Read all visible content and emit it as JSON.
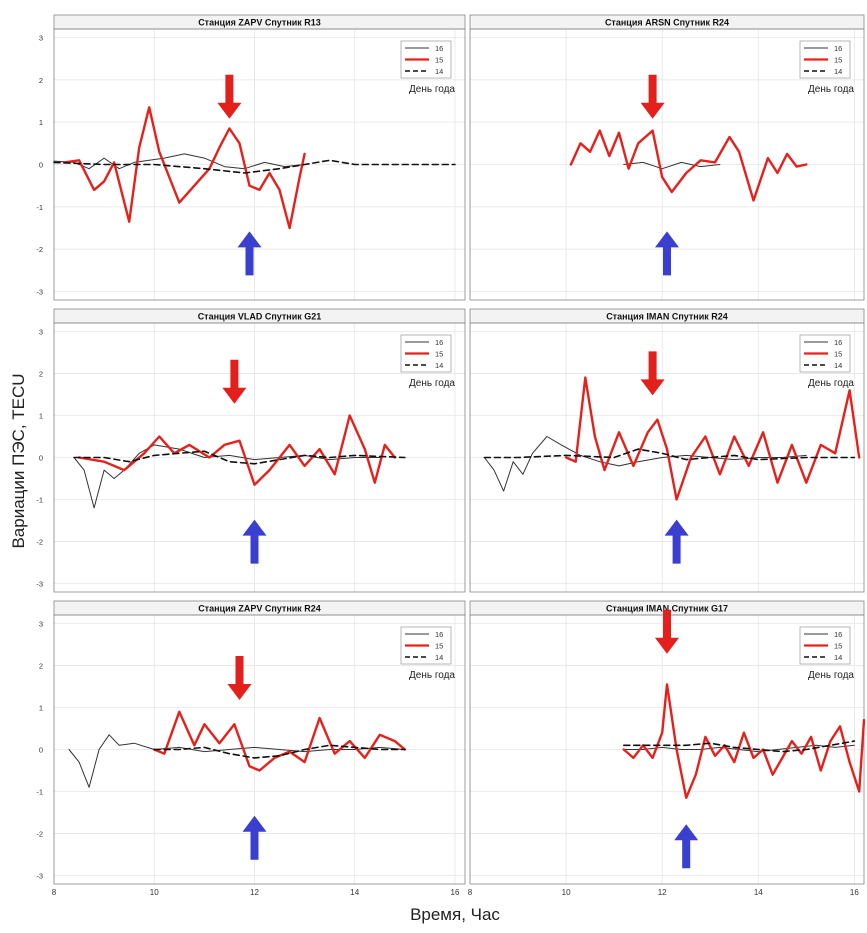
{
  "figure": {
    "ylabel": "Вариации ПЭС, TECU",
    "xlabel": "Время, Час",
    "legend_title": "День года",
    "colors": {
      "d16": "#333333",
      "d15": "#e8201b",
      "d14": "#111111",
      "down_arrow": "#e3201b",
      "up_arrow": "#3a3fd0",
      "grid": "#e6e6e6"
    }
  },
  "chart_data": [
    {
      "type": "line",
      "title": "Станция ZAPV Спутник R13",
      "xlim": [
        8,
        16.2
      ],
      "ylim": [
        -3.2,
        3.2
      ],
      "xticks": [],
      "yticks": [
        -3,
        -2,
        -1,
        0,
        1,
        2,
        3
      ],
      "grid": true,
      "legend": "top-right",
      "arrows": [
        {
          "dir": "down",
          "x": 11.5,
          "y": 1.6
        },
        {
          "dir": "up",
          "x": 11.9,
          "y": -2.1
        }
      ],
      "series": [
        {
          "name": "16",
          "style": "solid",
          "x": [
            8,
            8.4,
            8.7,
            9.0,
            9.3,
            9.6,
            9.9,
            10.2,
            10.6,
            11.0,
            11.4,
            11.8,
            12.2,
            12.6,
            13.0
          ],
          "y": [
            0.08,
            0.05,
            -0.1,
            0.15,
            -0.1,
            0.05,
            0.1,
            0.15,
            0.25,
            0.15,
            -0.05,
            -0.1,
            0.05,
            -0.05,
            0.0
          ]
        },
        {
          "name": "15",
          "style": "thick",
          "x": [
            8.2,
            8.5,
            8.8,
            9.0,
            9.2,
            9.5,
            9.7,
            9.9,
            10.1,
            10.3,
            10.5,
            10.8,
            11.1,
            11.3,
            11.5,
            11.7,
            11.9,
            12.1,
            12.3,
            12.5,
            12.7,
            12.9,
            13.0
          ],
          "y": [
            0.05,
            0.1,
            -0.6,
            -0.4,
            0.05,
            -1.35,
            0.4,
            1.35,
            0.3,
            -0.3,
            -0.9,
            -0.5,
            -0.1,
            0.4,
            0.85,
            0.5,
            -0.5,
            -0.6,
            -0.2,
            -0.6,
            -1.5,
            -0.3,
            0.25
          ]
        },
        {
          "name": "14",
          "style": "dashed",
          "x": [
            8,
            9,
            10,
            11,
            11.8,
            12.5,
            13.0,
            13.5,
            14.0,
            15.0,
            16.0
          ],
          "y": [
            0.05,
            0.0,
            0.0,
            -0.1,
            -0.2,
            -0.1,
            0.0,
            0.1,
            0.0,
            0.0,
            0.0
          ]
        }
      ]
    },
    {
      "type": "line",
      "title": "Станция ARSN Спутник R24",
      "xlim": [
        8,
        16.2
      ],
      "ylim": [
        -3.2,
        3.2
      ],
      "xticks": [],
      "yticks": [],
      "grid": true,
      "legend": "top-right",
      "arrows": [
        {
          "dir": "down",
          "x": 11.8,
          "y": 1.6
        },
        {
          "dir": "up",
          "x": 12.1,
          "y": -2.1
        }
      ],
      "series": [
        {
          "name": "16",
          "style": "solid",
          "x": [
            11.2,
            11.6,
            12.0,
            12.4,
            12.8,
            13.2
          ],
          "y": [
            0.0,
            0.05,
            -0.1,
            0.05,
            -0.05,
            0.0
          ]
        },
        {
          "name": "15",
          "style": "thick",
          "x": [
            10.1,
            10.3,
            10.5,
            10.7,
            10.9,
            11.1,
            11.3,
            11.5,
            11.8,
            12.0,
            12.2,
            12.5,
            12.8,
            13.1,
            13.4,
            13.6,
            13.9,
            14.2,
            14.4,
            14.6,
            14.8,
            15.0
          ],
          "y": [
            0.0,
            0.5,
            0.3,
            0.8,
            0.2,
            0.75,
            -0.1,
            0.5,
            0.8,
            -0.3,
            -0.65,
            -0.2,
            0.1,
            0.05,
            0.65,
            0.3,
            -0.85,
            0.15,
            -0.2,
            0.25,
            -0.05,
            0.0
          ]
        }
      ]
    },
    {
      "type": "line",
      "title": "Станция VLAD Спутник G21",
      "xlim": [
        8,
        16.2
      ],
      "ylim": [
        -3.2,
        3.2
      ],
      "xticks": [],
      "yticks": [
        -3,
        -2,
        -1,
        0,
        1,
        2,
        3
      ],
      "grid": true,
      "legend": "top-right",
      "arrows": [
        {
          "dir": "down",
          "x": 11.6,
          "y": 1.8
        },
        {
          "dir": "up",
          "x": 12.0,
          "y": -2.0
        }
      ],
      "series": [
        {
          "name": "16",
          "style": "solid",
          "x": [
            8.4,
            8.6,
            8.8,
            9.0,
            9.2,
            9.4,
            9.7,
            10.0,
            10.5,
            11.0,
            11.5,
            12.0,
            12.5,
            13.0,
            13.5,
            14.0,
            14.5
          ],
          "y": [
            0.0,
            -0.3,
            -1.2,
            -0.3,
            -0.5,
            -0.3,
            0.1,
            0.3,
            0.2,
            0.0,
            0.05,
            -0.05,
            0.0,
            0.05,
            -0.05,
            0.0,
            0.0
          ]
        },
        {
          "name": "15",
          "style": "thick",
          "x": [
            8.5,
            9.0,
            9.4,
            9.8,
            10.1,
            10.4,
            10.7,
            11.1,
            11.4,
            11.7,
            12.0,
            12.3,
            12.7,
            13.0,
            13.3,
            13.6,
            13.9,
            14.2,
            14.4,
            14.6,
            14.8
          ],
          "y": [
            0.0,
            -0.1,
            -0.3,
            0.1,
            0.5,
            0.1,
            0.3,
            0.0,
            0.3,
            0.4,
            -0.65,
            -0.3,
            0.3,
            -0.2,
            0.2,
            -0.4,
            1.0,
            0.2,
            -0.6,
            0.3,
            0.0
          ]
        },
        {
          "name": "14",
          "style": "dashed",
          "x": [
            8.4,
            9.0,
            9.5,
            10.0,
            10.5,
            11.0,
            11.5,
            12.0,
            12.5,
            13.0,
            13.5,
            14.0,
            15.0
          ],
          "y": [
            0.0,
            0.0,
            -0.1,
            0.05,
            0.1,
            0.15,
            -0.1,
            -0.15,
            -0.05,
            0.05,
            0.0,
            0.05,
            0.0
          ]
        }
      ]
    },
    {
      "type": "line",
      "title": "Станция IMAN Спутник R24",
      "xlim": [
        8,
        16.2
      ],
      "ylim": [
        -3.2,
        3.2
      ],
      "xticks": [],
      "yticks": [],
      "grid": true,
      "legend": "top-right",
      "arrows": [
        {
          "dir": "down",
          "x": 11.8,
          "y": 2.0
        },
        {
          "dir": "up",
          "x": 12.3,
          "y": -2.0
        }
      ],
      "series": [
        {
          "name": "16",
          "style": "solid",
          "x": [
            8.3,
            8.5,
            8.7,
            8.9,
            9.1,
            9.3,
            9.6,
            9.9,
            10.3,
            10.7,
            11.1,
            11.5,
            12.0,
            12.5,
            13.0,
            13.5,
            14.0,
            14.5,
            15.0
          ],
          "y": [
            0.0,
            -0.3,
            -0.8,
            -0.1,
            -0.4,
            0.1,
            0.5,
            0.3,
            0.05,
            -0.1,
            -0.2,
            -0.1,
            0.0,
            0.05,
            0.0,
            -0.05,
            0.0,
            0.0,
            0.05
          ]
        },
        {
          "name": "15",
          "style": "thick",
          "x": [
            10.0,
            10.2,
            10.4,
            10.6,
            10.8,
            11.1,
            11.4,
            11.7,
            11.9,
            12.1,
            12.3,
            12.6,
            12.9,
            13.2,
            13.5,
            13.8,
            14.1,
            14.4,
            14.7,
            15.0,
            15.3,
            15.6,
            15.9,
            16.1
          ],
          "y": [
            0.0,
            -0.1,
            1.9,
            0.5,
            -0.3,
            0.6,
            -0.2,
            0.6,
            0.9,
            0.2,
            -1.0,
            0.0,
            0.5,
            -0.4,
            0.5,
            -0.2,
            0.6,
            -0.6,
            0.3,
            -0.6,
            0.3,
            0.1,
            1.6,
            0.0
          ]
        },
        {
          "name": "14",
          "style": "dashed",
          "x": [
            8.3,
            9.0,
            10.0,
            11.0,
            11.5,
            12.0,
            12.5,
            13.0,
            13.5,
            14.0,
            15.0,
            16.0
          ],
          "y": [
            0.0,
            0.0,
            0.05,
            0.0,
            0.2,
            0.1,
            -0.05,
            0.0,
            0.05,
            -0.05,
            0.0,
            0.0
          ]
        }
      ]
    },
    {
      "type": "line",
      "title": "Станция ZAPV Спутник R24",
      "xlim": [
        8,
        16.2
      ],
      "ylim": [
        -3.2,
        3.2
      ],
      "xticks": [
        8,
        10,
        12,
        14,
        16
      ],
      "yticks": [
        -3,
        -2,
        -1,
        0,
        1,
        2,
        3
      ],
      "grid": true,
      "legend": "top-right",
      "arrows": [
        {
          "dir": "down",
          "x": 11.7,
          "y": 1.7
        },
        {
          "dir": "up",
          "x": 12.0,
          "y": -2.1
        }
      ],
      "series": [
        {
          "name": "16",
          "style": "solid",
          "x": [
            8.3,
            8.5,
            8.7,
            8.9,
            9.1,
            9.3,
            9.6,
            10.0,
            10.5,
            11.0,
            11.5,
            12.0,
            12.5,
            13.0,
            13.5,
            14.0,
            14.5,
            15.0
          ],
          "y": [
            0.0,
            -0.3,
            -0.9,
            0.0,
            0.35,
            0.1,
            0.15,
            0.0,
            0.05,
            -0.05,
            0.0,
            0.05,
            0.0,
            -0.05,
            0.0,
            0.0,
            0.05,
            0.0
          ]
        },
        {
          "name": "15",
          "style": "thick",
          "x": [
            10.0,
            10.2,
            10.5,
            10.8,
            11.0,
            11.3,
            11.6,
            11.9,
            12.1,
            12.4,
            12.7,
            13.0,
            13.3,
            13.6,
            13.9,
            14.2,
            14.5,
            14.8,
            15.0
          ],
          "y": [
            0.0,
            -0.1,
            0.9,
            0.1,
            0.6,
            0.15,
            0.6,
            -0.4,
            -0.5,
            -0.2,
            -0.05,
            -0.3,
            0.75,
            -0.1,
            0.2,
            -0.2,
            0.35,
            0.2,
            0.0
          ]
        },
        {
          "name": "14",
          "style": "dashed",
          "x": [
            10.0,
            10.5,
            11.0,
            11.5,
            12.0,
            12.5,
            13.0,
            13.5,
            14.0,
            14.5,
            15.0
          ],
          "y": [
            0.0,
            0.0,
            0.05,
            -0.1,
            -0.2,
            -0.15,
            0.0,
            0.1,
            0.05,
            0.0,
            0.0
          ]
        }
      ]
    },
    {
      "type": "line",
      "title": "Станция IMAN Спутник G17",
      "xlim": [
        8,
        16.2
      ],
      "ylim": [
        -3.2,
        3.2
      ],
      "xticks": [
        8,
        10,
        12,
        14,
        16
      ],
      "yticks": [],
      "grid": true,
      "legend": "top-right",
      "arrows": [
        {
          "dir": "down",
          "x": 12.1,
          "y": 2.8
        },
        {
          "dir": "up",
          "x": 12.5,
          "y": -2.3
        }
      ],
      "series": [
        {
          "name": "16",
          "style": "solid",
          "x": [
            11.2,
            11.6,
            12.0,
            12.4,
            12.8,
            13.2,
            13.6,
            14.0,
            14.4,
            14.8,
            15.2,
            15.6,
            16.0
          ],
          "y": [
            0.0,
            0.0,
            0.05,
            0.0,
            0.0,
            0.05,
            0.0,
            -0.05,
            0.0,
            0.05,
            0.1,
            0.05,
            0.1
          ]
        },
        {
          "name": "15",
          "style": "thick",
          "x": [
            11.2,
            11.4,
            11.6,
            11.8,
            12.0,
            12.1,
            12.3,
            12.5,
            12.7,
            12.9,
            13.1,
            13.3,
            13.5,
            13.7,
            13.9,
            14.1,
            14.3,
            14.5,
            14.7,
            14.9,
            15.1,
            15.3,
            15.5,
            15.7,
            15.9,
            16.1,
            16.2
          ],
          "y": [
            0.0,
            -0.2,
            0.1,
            -0.2,
            0.4,
            1.55,
            0.0,
            -1.15,
            -0.6,
            0.3,
            -0.15,
            0.1,
            -0.3,
            0.4,
            -0.2,
            0.0,
            -0.6,
            -0.2,
            0.2,
            -0.1,
            0.3,
            -0.5,
            0.2,
            0.55,
            -0.3,
            -1.0,
            0.7
          ]
        },
        {
          "name": "14",
          "style": "dashed",
          "x": [
            11.2,
            12.0,
            12.5,
            13.0,
            13.5,
            14.0,
            14.5,
            15.0,
            15.5,
            16.0
          ],
          "y": [
            0.1,
            0.1,
            0.1,
            0.15,
            0.05,
            0.0,
            -0.05,
            0.0,
            0.1,
            0.2
          ]
        }
      ]
    }
  ]
}
